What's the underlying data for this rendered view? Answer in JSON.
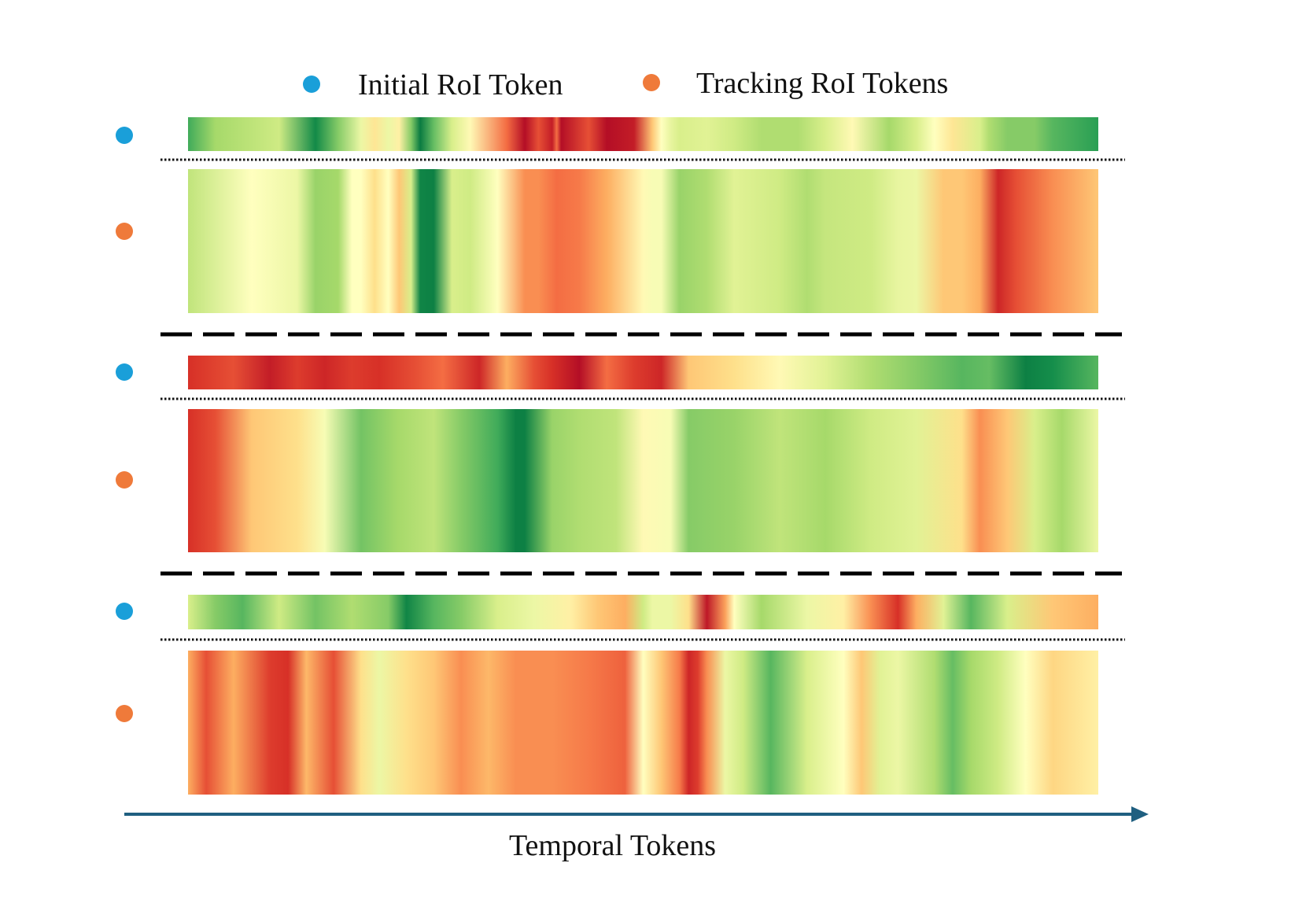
{
  "chart_data": {
    "type": "heatmap",
    "colormap": "RdYlGn",
    "value_scale": "0 = high attention (red), 1 = low attention (green)",
    "legend": {
      "initial": {
        "label": "Initial RoI Token",
        "color": "#1a9fd9"
      },
      "tracking": {
        "label": "Tracking RoI Tokens",
        "color": "#ef7a3a"
      }
    },
    "xlabel": "Temporal Tokens",
    "arrow_color": "#1f5f80",
    "groups": [
      {
        "initial": {
          "token_positions": [
            0.0,
            0.03,
            0.1,
            0.14,
            0.165,
            0.19,
            0.205,
            0.22,
            0.232,
            0.245,
            0.255,
            0.27,
            0.29,
            0.31,
            0.35,
            0.37,
            0.385,
            0.4,
            0.405,
            0.41,
            0.44,
            0.46,
            0.49,
            0.51,
            0.52,
            0.53,
            0.54,
            0.57,
            0.6,
            0.63,
            0.67,
            0.7,
            0.73,
            0.77,
            0.8,
            0.82,
            0.84,
            0.87,
            0.88,
            0.9,
            0.93,
            0.95,
            1.0
          ],
          "values": [
            0.85,
            0.7,
            0.62,
            0.93,
            0.75,
            0.55,
            0.42,
            0.55,
            0.45,
            0.75,
            0.96,
            0.8,
            0.6,
            0.48,
            0.2,
            0.03,
            0.15,
            0.06,
            0.2,
            0.03,
            0.15,
            0.03,
            0.06,
            0.35,
            0.5,
            0.56,
            0.6,
            0.58,
            0.62,
            0.68,
            0.68,
            0.6,
            0.48,
            0.7,
            0.6,
            0.5,
            0.42,
            0.6,
            0.68,
            0.75,
            0.75,
            0.82,
            0.88
          ]
        },
        "tracking": {
          "token_positions": [
            0.0,
            0.07,
            0.12,
            0.14,
            0.165,
            0.18,
            0.19,
            0.205,
            0.22,
            0.232,
            0.245,
            0.255,
            0.27,
            0.29,
            0.31,
            0.34,
            0.37,
            0.385,
            0.405,
            0.43,
            0.46,
            0.5,
            0.51,
            0.52,
            0.54,
            0.57,
            0.6,
            0.65,
            0.68,
            0.7,
            0.75,
            0.78,
            0.8,
            0.83,
            0.85,
            0.87,
            0.89,
            0.91,
            0.95,
            1.0
          ],
          "values": [
            0.65,
            0.5,
            0.55,
            0.72,
            0.7,
            0.5,
            0.5,
            0.4,
            0.5,
            0.35,
            0.6,
            0.94,
            0.95,
            0.6,
            0.62,
            0.5,
            0.25,
            0.25,
            0.2,
            0.22,
            0.3,
            0.48,
            0.52,
            0.52,
            0.72,
            0.68,
            0.58,
            0.62,
            0.68,
            0.64,
            0.62,
            0.56,
            0.55,
            0.35,
            0.35,
            0.3,
            0.08,
            0.15,
            0.25,
            0.35
          ]
        }
      },
      {
        "initial": {
          "token_positions": [
            0.0,
            0.05,
            0.09,
            0.12,
            0.15,
            0.18,
            0.21,
            0.25,
            0.28,
            0.32,
            0.35,
            0.38,
            0.4,
            0.43,
            0.46,
            0.49,
            0.52,
            0.55,
            0.6,
            0.65,
            0.7,
            0.75,
            0.8,
            0.85,
            0.88,
            0.92,
            0.95,
            1.0
          ],
          "values": [
            0.1,
            0.15,
            0.06,
            0.12,
            0.08,
            0.12,
            0.1,
            0.15,
            0.2,
            0.08,
            0.3,
            0.15,
            0.1,
            0.03,
            0.2,
            0.12,
            0.08,
            0.35,
            0.4,
            0.48,
            0.58,
            0.68,
            0.75,
            0.82,
            0.8,
            0.95,
            0.92,
            0.82
          ]
        },
        "tracking": {
          "token_positions": [
            0.0,
            0.03,
            0.07,
            0.12,
            0.15,
            0.19,
            0.23,
            0.27,
            0.3,
            0.34,
            0.36,
            0.37,
            0.4,
            0.43,
            0.47,
            0.5,
            0.53,
            0.55,
            0.6,
            0.65,
            0.7,
            0.75,
            0.8,
            0.85,
            0.87,
            0.9,
            0.93,
            0.96,
            1.0
          ],
          "values": [
            0.1,
            0.15,
            0.35,
            0.4,
            0.52,
            0.78,
            0.7,
            0.65,
            0.75,
            0.85,
            0.95,
            0.95,
            0.72,
            0.68,
            0.65,
            0.48,
            0.52,
            0.75,
            0.72,
            0.65,
            0.7,
            0.62,
            0.58,
            0.4,
            0.25,
            0.35,
            0.6,
            0.7,
            0.55
          ]
        }
      },
      {
        "initial": {
          "token_positions": [
            0.0,
            0.03,
            0.06,
            0.1,
            0.14,
            0.18,
            0.22,
            0.24,
            0.27,
            0.3,
            0.34,
            0.38,
            0.42,
            0.45,
            0.48,
            0.5,
            0.51,
            0.53,
            0.55,
            0.57,
            0.59,
            0.6,
            0.63,
            0.68,
            0.72,
            0.75,
            0.78,
            0.8,
            0.83,
            0.86,
            0.9,
            0.95,
            1.0
          ],
          "values": [
            0.6,
            0.75,
            0.82,
            0.62,
            0.78,
            0.68,
            0.75,
            0.94,
            0.82,
            0.75,
            0.6,
            0.55,
            0.45,
            0.35,
            0.3,
            0.62,
            0.55,
            0.55,
            0.4,
            0.05,
            0.28,
            0.5,
            0.7,
            0.55,
            0.45,
            0.25,
            0.1,
            0.3,
            0.58,
            0.82,
            0.6,
            0.35,
            0.3
          ]
        },
        "tracking": {
          "token_positions": [
            0.0,
            0.02,
            0.05,
            0.09,
            0.11,
            0.13,
            0.16,
            0.19,
            0.21,
            0.24,
            0.27,
            0.3,
            0.33,
            0.36,
            0.4,
            0.44,
            0.48,
            0.5,
            0.52,
            0.54,
            0.55,
            0.56,
            0.57,
            0.59,
            0.61,
            0.64,
            0.68,
            0.72,
            0.74,
            0.76,
            0.78,
            0.82,
            0.84,
            0.86,
            0.89,
            0.92,
            0.95,
            1.0
          ],
          "values": [
            0.3,
            0.15,
            0.3,
            0.12,
            0.1,
            0.32,
            0.15,
            0.4,
            0.55,
            0.4,
            0.35,
            0.25,
            0.32,
            0.25,
            0.25,
            0.22,
            0.18,
            0.5,
            0.35,
            0.22,
            0.08,
            0.12,
            0.25,
            0.55,
            0.62,
            0.82,
            0.6,
            0.5,
            0.35,
            0.58,
            0.55,
            0.68,
            0.8,
            0.7,
            0.62,
            0.5,
            0.38,
            0.45
          ]
        }
      }
    ]
  }
}
